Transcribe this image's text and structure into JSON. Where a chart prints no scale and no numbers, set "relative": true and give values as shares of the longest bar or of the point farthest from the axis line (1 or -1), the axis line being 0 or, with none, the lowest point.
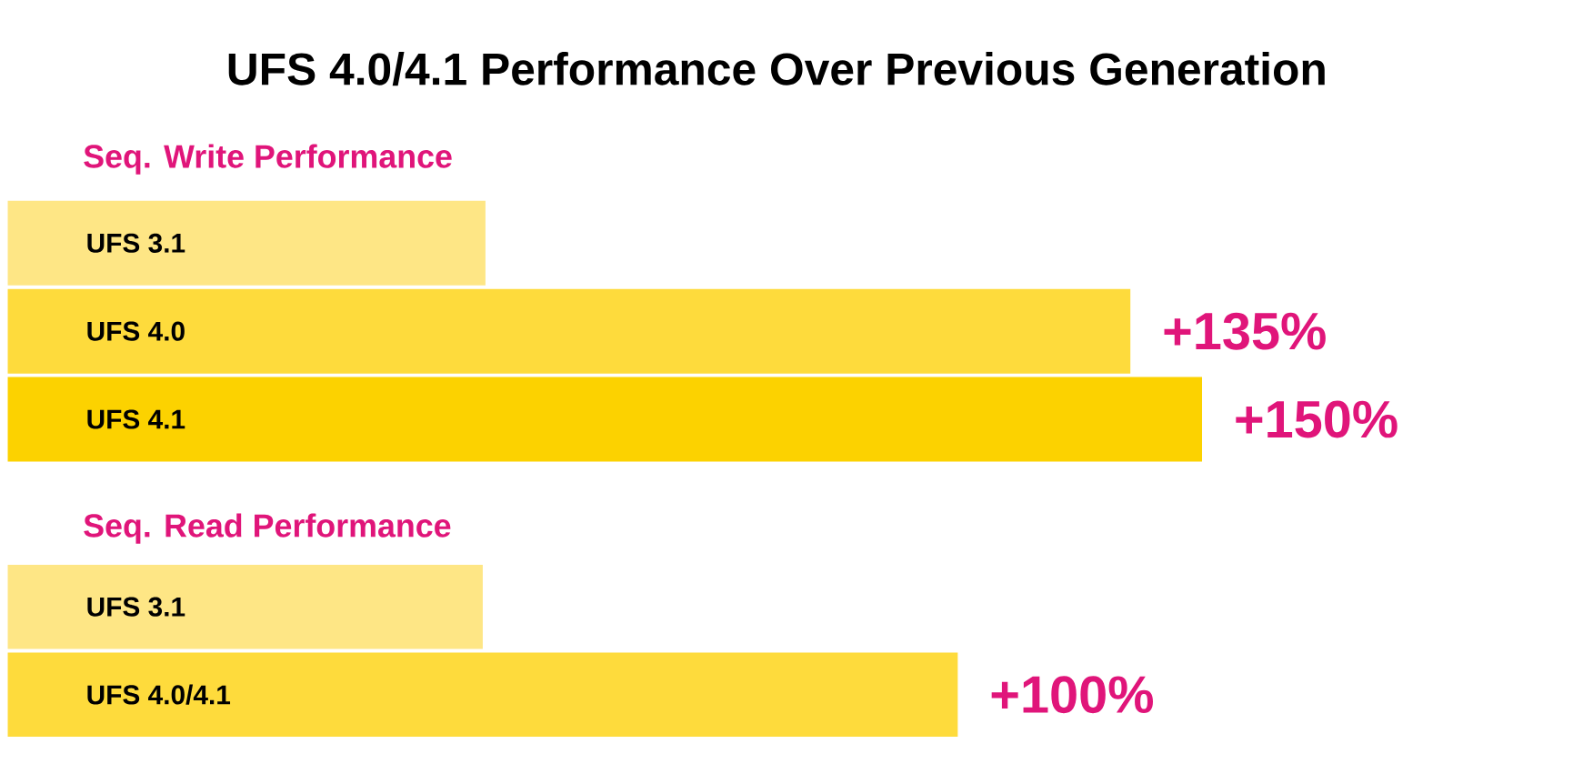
{
  "chart_data": [
    {
      "type": "bar",
      "orientation": "horizontal",
      "relative": true,
      "title": "UFS 4.0/4.1 Performance Over Previous Generation",
      "subtitle": "Seq. Write Performance",
      "categories": [
        "UFS 3.1",
        "UFS 4.0",
        "UFS 4.1"
      ],
      "values": [
        0.4,
        0.94,
        1
      ],
      "colors": [
        "#fee685",
        "#fedb3c",
        "#fcd200"
      ],
      "tick_labels": "y",
      "annotations": [
        "+135%",
        "+150%"
      ]
    },
    {
      "type": "bar",
      "orientation": "horizontal",
      "relative": true,
      "title": "Seq. Read Performance",
      "categories": [
        "UFS 3.1",
        "UFS 4.0/4.1"
      ],
      "values": [
        0.5,
        1
      ],
      "colors": [
        "#fee685",
        "#fedb3c"
      ],
      "tick_labels": "y",
      "annotations": [
        "+100%"
      ]
    }
  ]
}
